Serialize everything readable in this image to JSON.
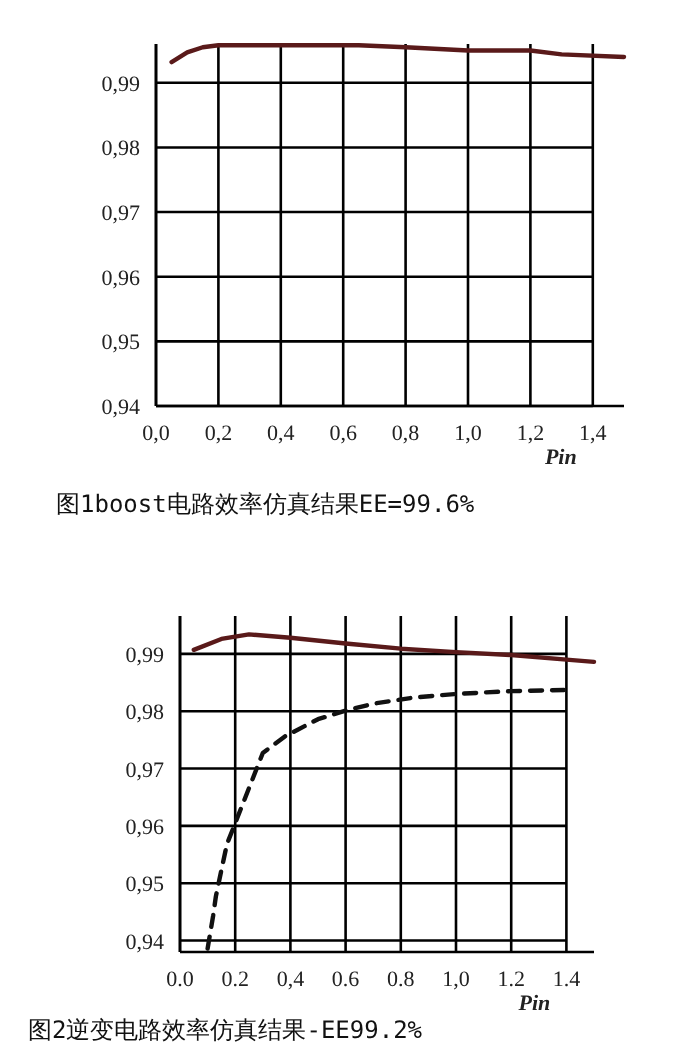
{
  "chart_data": [
    {
      "type": "line",
      "title": "图1boost电路效率仿真结果EE=99.6%",
      "xlabel": "Pin",
      "grid": true,
      "xlim": [
        0,
        1.5
      ],
      "ylim": [
        0.94,
        0.996
      ],
      "xticks": [
        {
          "value": 0,
          "label": "0,0"
        },
        {
          "value": 0.2,
          "label": "0,2"
        },
        {
          "value": 0.4,
          "label": "0,4"
        },
        {
          "value": 0.6,
          "label": "0,6"
        },
        {
          "value": 0.8,
          "label": "0,8"
        },
        {
          "value": 1.0,
          "label": "1,0"
        },
        {
          "value": 1.2,
          "label": "1,2"
        },
        {
          "value": 1.4,
          "label": "1,4"
        }
      ],
      "yticks": [
        {
          "value": 0.94,
          "label": "0,94"
        },
        {
          "value": 0.95,
          "label": "0,95"
        },
        {
          "value": 0.96,
          "label": "0,96"
        },
        {
          "value": 0.97,
          "label": "0,97"
        },
        {
          "value": 0.98,
          "label": "0,98"
        },
        {
          "value": 0.99,
          "label": "0,99"
        }
      ],
      "series": [
        {
          "color": "#5a1a1a",
          "line_style": "solid",
          "x": [
            0.05,
            0.1,
            0.15,
            0.2,
            0.65,
            0.8,
            1.0,
            1.2,
            1.3,
            1.5
          ],
          "values": [
            0.9932,
            0.9947,
            0.9955,
            0.9958,
            0.9958,
            0.9955,
            0.995,
            0.995,
            0.9944,
            0.994
          ]
        }
      ]
    },
    {
      "type": "line",
      "title": "图2逆变电路效率仿真结果-EE99.2%",
      "xlabel": "Pin",
      "grid": true,
      "xlim": [
        0,
        1.5
      ],
      "ylim": [
        0.938,
        0.9966
      ],
      "xticks": [
        {
          "value": 0,
          "label": "0.0"
        },
        {
          "value": 0.2,
          "label": "0.2"
        },
        {
          "value": 0.4,
          "label": "0,4"
        },
        {
          "value": 0.6,
          "label": "0.6"
        },
        {
          "value": 0.8,
          "label": "0.8"
        },
        {
          "value": 1.0,
          "label": "1,0"
        },
        {
          "value": 1.2,
          "label": "1.2"
        },
        {
          "value": 1.4,
          "label": "1.4"
        }
      ],
      "yticks": [
        {
          "value": 0.94,
          "label": "0,94"
        },
        {
          "value": 0.95,
          "label": "0,95"
        },
        {
          "value": 0.96,
          "label": "0,96"
        },
        {
          "value": 0.97,
          "label": "0,97"
        },
        {
          "value": 0.98,
          "label": "0,98"
        },
        {
          "value": 0.99,
          "label": "0,99"
        }
      ],
      "series": [
        {
          "color": "#5a1a1a",
          "line_style": "solid",
          "x": [
            0.05,
            0.15,
            0.25,
            0.4,
            0.6,
            0.8,
            1.0,
            1.2,
            1.4,
            1.5
          ],
          "values": [
            0.9907,
            0.9926,
            0.9934,
            0.9928,
            0.9918,
            0.9909,
            0.9903,
            0.9898,
            0.989,
            0.9886
          ]
        },
        {
          "color": "#111111",
          "line_style": "dashed",
          "x": [
            0.1,
            0.12,
            0.13,
            0.15,
            0.17,
            0.3,
            0.38,
            0.5,
            0.6,
            0.7,
            0.85,
            1.0,
            1.2,
            1.4
          ],
          "values": [
            0.9386,
            0.9443,
            0.9477,
            0.9523,
            0.9568,
            0.9727,
            0.9756,
            0.9786,
            0.9801,
            0.9813,
            0.9824,
            0.983,
            0.9835,
            0.9837
          ]
        }
      ]
    }
  ]
}
